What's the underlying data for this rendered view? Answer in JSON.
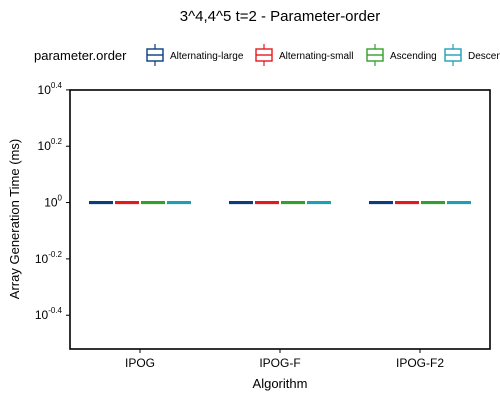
{
  "chart_data": {
    "type": "boxplot",
    "title": "3^4,4^5 t=2 - Parameter-order",
    "xlabel": "Algorithm",
    "ylabel": "Array Generation Time (ms)",
    "y_scale": "log10",
    "ylim": [
      0.302,
      2.51
    ],
    "y_ticks": [
      {
        "value": 0.398,
        "base": "10",
        "exp": "-0.4"
      },
      {
        "value": 0.631,
        "base": "10",
        "exp": "-0.2"
      },
      {
        "value": 1.0,
        "base": "10",
        "exp": "0"
      },
      {
        "value": 1.585,
        "base": "10",
        "exp": "0.2"
      },
      {
        "value": 2.512,
        "base": "10",
        "exp": "0.4"
      }
    ],
    "legend": {
      "title": "parameter.order",
      "placement": "top"
    },
    "categories": [
      "IPOG",
      "IPOG-F",
      "IPOG-F2"
    ],
    "series": [
      {
        "name": "Alternating-large",
        "color": "#0b3c7d",
        "values": [
          1,
          1,
          1
        ]
      },
      {
        "name": "Alternating-small",
        "color": "#e31a1c",
        "values": [
          1,
          1,
          1
        ]
      },
      {
        "name": "Ascending",
        "color": "#33a02c",
        "values": [
          1,
          1,
          1
        ]
      },
      {
        "name": "Descending",
        "color": "#1f9fb4",
        "values": [
          1,
          1,
          1
        ]
      }
    ]
  }
}
